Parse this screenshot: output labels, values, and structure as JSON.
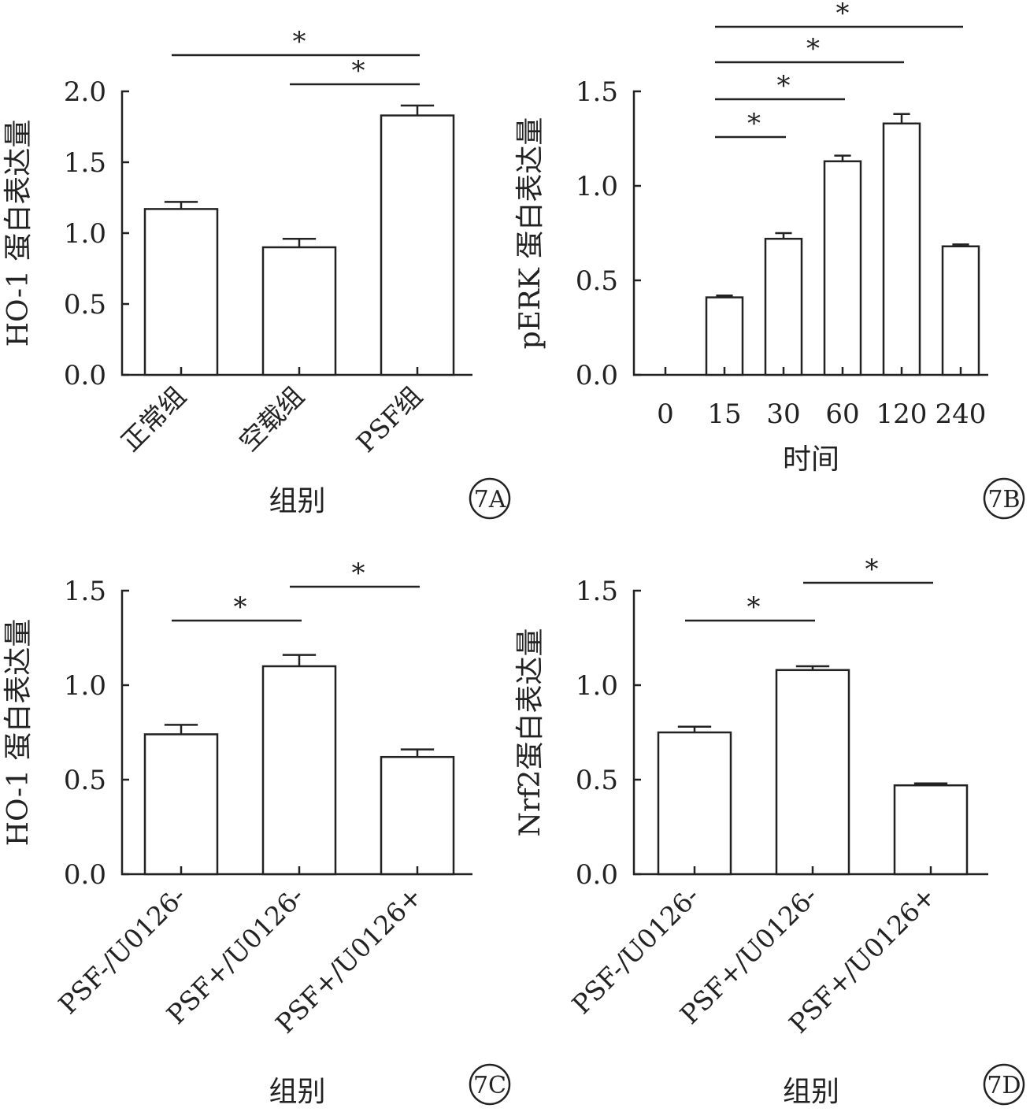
{
  "figure_labels": [
    "7A",
    "7B",
    "7C",
    "7D"
  ],
  "chart_data": [
    {
      "type": "bar",
      "panel": "7A",
      "ylabel": "HO-1 蛋白表达量",
      "xlabel": "组别",
      "categories": [
        "正常组",
        "空载组",
        "PSF组"
      ],
      "values": [
        1.17,
        0.9,
        1.83
      ],
      "errors": [
        0.05,
        0.06,
        0.07
      ],
      "ylim": [
        0,
        2.0
      ],
      "yticks": [
        "0.0",
        "0.5",
        "1.0",
        "1.5",
        "2.0"
      ],
      "significance": [
        {
          "from": 0,
          "to": 2,
          "label": "*"
        },
        {
          "from": 1,
          "to": 2,
          "label": "*"
        }
      ],
      "rotated_labels": true
    },
    {
      "type": "bar",
      "panel": "7B",
      "ylabel": "pERK 蛋白表达量",
      "xlabel": "时间",
      "categories": [
        "0",
        "15",
        "30",
        "60",
        "120",
        "240"
      ],
      "values": [
        0,
        0.41,
        0.72,
        1.13,
        1.33,
        0.68
      ],
      "errors": [
        0,
        0.01,
        0.03,
        0.03,
        0.05,
        0.01
      ],
      "ylim": [
        0,
        1.5
      ],
      "yticks": [
        "0.0",
        "0.5",
        "1.0",
        "1.5"
      ],
      "significance": [
        {
          "from": 1,
          "to": 2,
          "label": "*"
        },
        {
          "from": 1,
          "to": 3,
          "label": "*"
        },
        {
          "from": 1,
          "to": 4,
          "label": "*"
        },
        {
          "from": 1,
          "to": 5,
          "label": "*"
        }
      ],
      "rotated_labels": false
    },
    {
      "type": "bar",
      "panel": "7C",
      "ylabel": "HO-1 蛋白表达量",
      "xlabel": "组别",
      "categories": [
        "PSF-/U0126-",
        "PSF+/U0126-",
        "PSF+/U0126+"
      ],
      "values": [
        0.74,
        1.1,
        0.62
      ],
      "errors": [
        0.05,
        0.06,
        0.04
      ],
      "ylim": [
        0,
        1.5
      ],
      "yticks": [
        "0.0",
        "0.5",
        "1.0",
        "1.5"
      ],
      "significance": [
        {
          "from": 0,
          "to": 1,
          "label": "*"
        },
        {
          "from": 1,
          "to": 2,
          "label": "*"
        }
      ],
      "rotated_labels": true
    },
    {
      "type": "bar",
      "panel": "7D",
      "ylabel": "Nrf2蛋白表达量",
      "xlabel": "组别",
      "categories": [
        "PSF-/U0126-",
        "PSF+/U0126-",
        "PSF+/U0126+"
      ],
      "values": [
        0.75,
        1.08,
        0.47
      ],
      "errors": [
        0.03,
        0.02,
        0.01
      ],
      "ylim": [
        0,
        1.5
      ],
      "yticks": [
        "0.0",
        "0.5",
        "1.0",
        "1.5"
      ],
      "significance": [
        {
          "from": 0,
          "to": 1,
          "label": "*"
        },
        {
          "from": 1,
          "to": 2,
          "label": "*"
        }
      ],
      "rotated_labels": true
    }
  ]
}
